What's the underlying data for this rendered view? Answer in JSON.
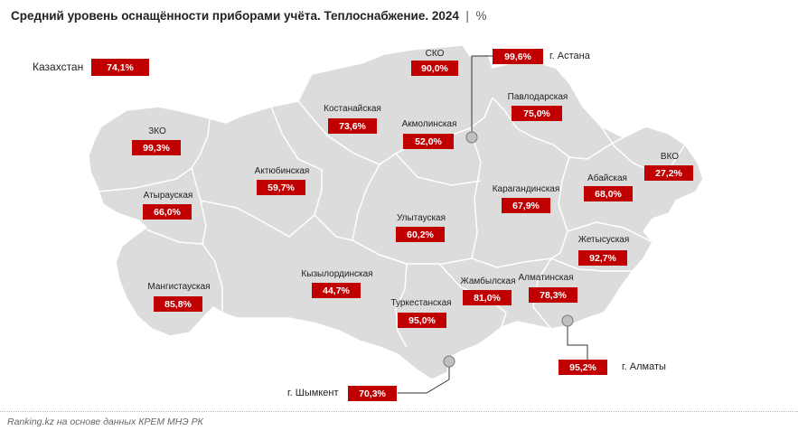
{
  "title": "Средний уровень оснащённости приборами учёта. Теплоснабжение. 2024",
  "title_unit": "%",
  "source": "Ranking.kz на основе данных КРЕМ МНЭ РК",
  "colors": {
    "map_fill": "#dcdcdc",
    "border": "#ffffff",
    "value_box": "#c00000"
  },
  "country": {
    "name": "Казахстан",
    "value": "74,1%"
  },
  "regions": [
    {
      "name": "СКО",
      "value": "90,0%"
    },
    {
      "name": "Павлодарская",
      "value": "75,0%"
    },
    {
      "name": "Костанайская",
      "value": "73,6%"
    },
    {
      "name": "Акмолинская",
      "value": "52,0%"
    },
    {
      "name": "ЗКО",
      "value": "99,3%"
    },
    {
      "name": "ВКО",
      "value": "27,2%"
    },
    {
      "name": "Актюбинская",
      "value": "59,7%"
    },
    {
      "name": "Абайская",
      "value": "68,0%"
    },
    {
      "name": "Карагандинская",
      "value": "67,9%"
    },
    {
      "name": "Атырауская",
      "value": "66,0%"
    },
    {
      "name": "Улытауская",
      "value": "60,2%"
    },
    {
      "name": "Жетысуская",
      "value": "92,7%"
    },
    {
      "name": "Мангистауская",
      "value": "85,8%"
    },
    {
      "name": "Кызылординская",
      "value": "44,7%"
    },
    {
      "name": "Жамбылская",
      "value": "81,0%"
    },
    {
      "name": "Алматинская",
      "value": "78,3%"
    },
    {
      "name": "Туркестанская",
      "value": "95,0%"
    }
  ],
  "cities": [
    {
      "name": "г. Астана",
      "value": "99,6%"
    },
    {
      "name": "г. Алматы",
      "value": "95,2%"
    },
    {
      "name": "г. Шымкент",
      "value": "70,3%"
    }
  ]
}
